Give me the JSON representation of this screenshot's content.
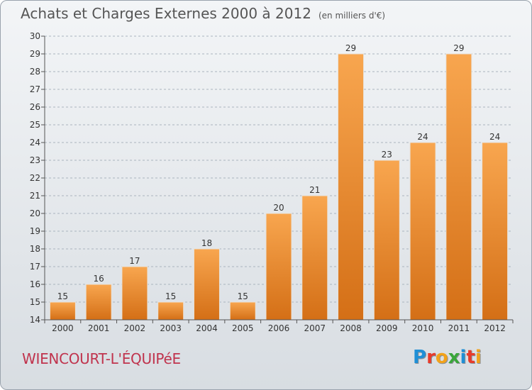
{
  "title": "Achats et Charges Externes 2000 à 2012",
  "unit": "(en milliers d'€)",
  "commune": "WIENCOURT-L'ÉQUIPéE",
  "logo": {
    "text": "Proxiti",
    "letters": [
      {
        "ch": "P",
        "color": "#1f8fd6"
      },
      {
        "ch": "r",
        "color": "#e83a2a"
      },
      {
        "ch": "o",
        "color": "#f2a21b"
      },
      {
        "ch": "x",
        "color": "#3aa63a"
      },
      {
        "ch": "i",
        "color": "#1f8fd6"
      },
      {
        "ch": "t",
        "color": "#e83a2a"
      },
      {
        "ch": "i",
        "color": "#f2a21b"
      }
    ]
  },
  "colors": {
    "bar_top": "#f8a64f",
    "bar_bottom": "#d46f16",
    "grid": "#aab4be",
    "axis": "#555555"
  },
  "chart_data": {
    "type": "bar",
    "categories": [
      "2000",
      "2001",
      "2002",
      "2003",
      "2004",
      "2005",
      "2006",
      "2007",
      "2008",
      "2009",
      "2010",
      "2011",
      "2012"
    ],
    "values": [
      15,
      16,
      17,
      15,
      18,
      15,
      20,
      21,
      29,
      23,
      24,
      29,
      24
    ],
    "ylim": [
      14,
      30
    ],
    "yticks": [
      14,
      15,
      16,
      17,
      18,
      19,
      20,
      21,
      22,
      23,
      24,
      25,
      26,
      27,
      28,
      29,
      30
    ],
    "grid": true,
    "legend": "none"
  }
}
